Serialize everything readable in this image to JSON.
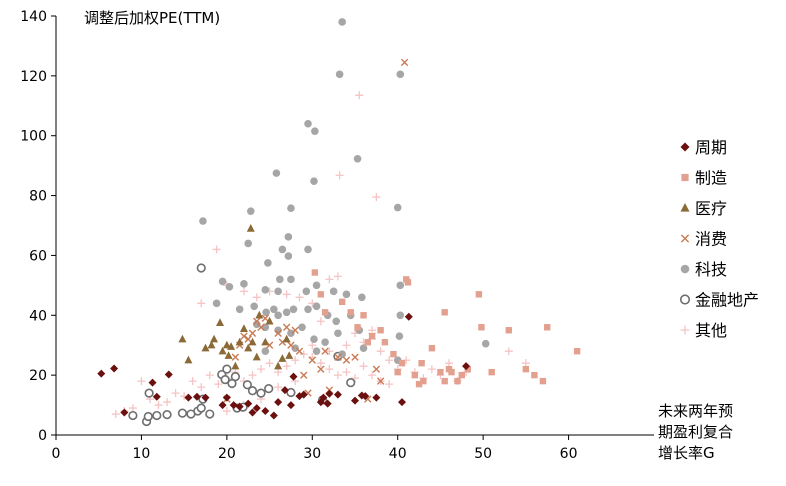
{
  "chart_data": {
    "type": "scatter",
    "title": "",
    "ylabel": "调整后加权PE(TTM)",
    "xlabel_lines": [
      "未来两年预",
      "期盈利复合",
      "增长率G"
    ],
    "xlim": [
      0,
      70
    ],
    "ylim": [
      0,
      140
    ],
    "x_ticks": [
      0,
      10,
      20,
      30,
      40,
      50,
      60
    ],
    "y_ticks": [
      0,
      20,
      40,
      60,
      80,
      100,
      120,
      140
    ],
    "grid": false,
    "legend_position": "right",
    "series": [
      {
        "name": "周期",
        "marker": "diamond",
        "color": "#6b0f0f",
        "points": [
          [
            5.3,
            20.5
          ],
          [
            6.8,
            22.2
          ],
          [
            8,
            7.5
          ],
          [
            11.3,
            17.5
          ],
          [
            11.8,
            12.8
          ],
          [
            13.2,
            20.2
          ],
          [
            15.5,
            12.5
          ],
          [
            16.5,
            12.8
          ],
          [
            17.5,
            12.5
          ],
          [
            19.5,
            10
          ],
          [
            20,
            12.5
          ],
          [
            20.8,
            10
          ],
          [
            21.5,
            9.5
          ],
          [
            22.5,
            10.5
          ],
          [
            23,
            7.5
          ],
          [
            23.5,
            9
          ],
          [
            24.5,
            8
          ],
          [
            25.5,
            6.5
          ],
          [
            26,
            11
          ],
          [
            26.8,
            15
          ],
          [
            27.5,
            10
          ],
          [
            27.8,
            19.5
          ],
          [
            28.5,
            13
          ],
          [
            29,
            13.5
          ],
          [
            31,
            11
          ],
          [
            31.3,
            12.5
          ],
          [
            31.8,
            10.5
          ],
          [
            32,
            13.8
          ],
          [
            33,
            13.5
          ],
          [
            35,
            11.5
          ],
          [
            35.8,
            13.2
          ],
          [
            36.2,
            13
          ],
          [
            37.5,
            12.5
          ],
          [
            40.5,
            11
          ],
          [
            41.3,
            39.5
          ],
          [
            48,
            23
          ]
        ]
      },
      {
        "name": "制造",
        "marker": "square",
        "color": "#e3a08f",
        "points": [
          [
            30.3,
            54.3
          ],
          [
            31,
            47
          ],
          [
            31.5,
            41
          ],
          [
            33.5,
            44.5
          ],
          [
            34.5,
            41
          ],
          [
            35.3,
            36
          ],
          [
            36,
            40
          ],
          [
            36.5,
            31
          ],
          [
            37,
            33
          ],
          [
            38,
            35
          ],
          [
            38.5,
            31
          ],
          [
            39.5,
            27
          ],
          [
            40,
            21
          ],
          [
            40.5,
            24
          ],
          [
            41,
            52
          ],
          [
            41.2,
            51
          ],
          [
            42,
            20
          ],
          [
            42.5,
            17
          ],
          [
            42.8,
            24
          ],
          [
            43,
            18
          ],
          [
            45.5,
            41
          ],
          [
            44,
            29
          ],
          [
            45,
            21
          ],
          [
            45.5,
            18
          ],
          [
            46,
            22
          ],
          [
            46.3,
            21
          ],
          [
            47,
            18
          ],
          [
            47.5,
            20
          ],
          [
            48.2,
            22
          ],
          [
            49.5,
            47
          ],
          [
            49.8,
            36
          ],
          [
            51,
            21
          ],
          [
            53,
            35
          ],
          [
            55,
            22
          ],
          [
            56,
            20
          ],
          [
            57,
            18
          ],
          [
            57.5,
            36
          ],
          [
            61,
            28
          ]
        ]
      },
      {
        "name": "医疗",
        "marker": "triangle",
        "color": "#8b6a37",
        "points": [
          [
            14.8,
            32
          ],
          [
            15.5,
            25
          ],
          [
            17.5,
            29
          ],
          [
            18.2,
            30
          ],
          [
            18.5,
            32
          ],
          [
            19.2,
            37.5
          ],
          [
            19.5,
            28
          ],
          [
            20,
            30
          ],
          [
            20.2,
            26.5
          ],
          [
            20.5,
            29.5
          ],
          [
            21,
            23
          ],
          [
            21.5,
            31
          ],
          [
            22,
            35.5
          ],
          [
            22.5,
            29
          ],
          [
            22.8,
            69
          ],
          [
            23,
            31
          ],
          [
            23.5,
            26
          ],
          [
            23.8,
            40
          ],
          [
            24.5,
            31
          ],
          [
            25,
            38
          ],
          [
            26,
            23
          ],
          [
            26.5,
            25.5
          ],
          [
            27,
            32
          ],
          [
            27.3,
            26.5
          ]
        ]
      },
      {
        "name": "消费",
        "marker": "x",
        "color": "#c97b55",
        "points": [
          [
            40.8,
            124.5
          ],
          [
            20,
            12
          ],
          [
            21,
            26
          ],
          [
            21.5,
            30
          ],
          [
            22,
            33
          ],
          [
            22.5,
            32
          ],
          [
            23,
            34
          ],
          [
            23.5,
            38
          ],
          [
            24,
            36
          ],
          [
            24.5,
            39
          ],
          [
            25,
            30
          ],
          [
            26,
            34
          ],
          [
            26.5,
            31
          ],
          [
            27,
            36
          ],
          [
            27.5,
            30
          ],
          [
            28,
            35
          ],
          [
            28.5,
            28
          ],
          [
            29,
            20
          ],
          [
            29.5,
            14
          ],
          [
            30,
            25
          ],
          [
            31,
            22
          ],
          [
            31.5,
            28
          ],
          [
            32,
            15
          ],
          [
            33,
            26
          ],
          [
            34,
            25
          ],
          [
            35,
            26
          ],
          [
            36.5,
            12
          ],
          [
            37,
            33
          ],
          [
            37.5,
            22
          ],
          [
            38,
            18
          ]
        ]
      },
      {
        "name": "科技",
        "marker": "circle",
        "color": "#a6a6a6",
        "points": [
          [
            33.5,
            138
          ],
          [
            33.2,
            120.5
          ],
          [
            40.3,
            120.5
          ],
          [
            29.5,
            104
          ],
          [
            30.3,
            101.5
          ],
          [
            35.3,
            92.3
          ],
          [
            25.8,
            87.5
          ],
          [
            30.2,
            84.8
          ],
          [
            40,
            76
          ],
          [
            22.8,
            74.8
          ],
          [
            27.5,
            75.8
          ],
          [
            17.2,
            71.5
          ],
          [
            22.5,
            64
          ],
          [
            27.2,
            66.2
          ],
          [
            26.5,
            62
          ],
          [
            27.2,
            59.8
          ],
          [
            29.5,
            62
          ],
          [
            24.8,
            57.5
          ],
          [
            26.2,
            52
          ],
          [
            30.5,
            50
          ],
          [
            19.5,
            51.3
          ],
          [
            20.3,
            49.5
          ],
          [
            22,
            50.5
          ],
          [
            24.5,
            48.5
          ],
          [
            26,
            48
          ],
          [
            27.5,
            52
          ],
          [
            29.3,
            48
          ],
          [
            32.5,
            48
          ],
          [
            34,
            47
          ],
          [
            35.8,
            46
          ],
          [
            40.3,
            50
          ],
          [
            18.8,
            44
          ],
          [
            21.5,
            42
          ],
          [
            23.2,
            43
          ],
          [
            24.6,
            41
          ],
          [
            25.5,
            42
          ],
          [
            26,
            40
          ],
          [
            27,
            41
          ],
          [
            27.8,
            42
          ],
          [
            29.5,
            42
          ],
          [
            30.5,
            43
          ],
          [
            31.8,
            40
          ],
          [
            32.8,
            38
          ],
          [
            34.5,
            40
          ],
          [
            40.3,
            40
          ],
          [
            23.5,
            37
          ],
          [
            24.5,
            36
          ],
          [
            26,
            35
          ],
          [
            27.5,
            34
          ],
          [
            28.8,
            36
          ],
          [
            30.2,
            32
          ],
          [
            31.5,
            31
          ],
          [
            33,
            34
          ],
          [
            35.5,
            35
          ],
          [
            40.2,
            33
          ],
          [
            50.3,
            30.5
          ],
          [
            24.5,
            28
          ],
          [
            28,
            29
          ],
          [
            30.5,
            28
          ],
          [
            33.5,
            27
          ],
          [
            36,
            29
          ],
          [
            40,
            25
          ]
        ]
      },
      {
        "name": "金融地产",
        "marker": "circle-open",
        "color": "#6e6e6e",
        "points": [
          [
            17,
            55.8
          ],
          [
            9,
            6.5
          ],
          [
            10.6,
            4.5
          ],
          [
            10.8,
            6.2
          ],
          [
            11.8,
            6.5
          ],
          [
            13,
            6.8
          ],
          [
            14.8,
            7.3
          ],
          [
            15.8,
            7
          ],
          [
            16.6,
            8
          ],
          [
            17,
            9
          ],
          [
            18,
            7
          ],
          [
            19.4,
            20.2
          ],
          [
            19.8,
            18.5
          ],
          [
            20,
            22
          ],
          [
            20.6,
            17.2
          ],
          [
            21,
            19.5
          ],
          [
            21.2,
            9
          ],
          [
            21.9,
            9.3
          ],
          [
            22.4,
            16.8
          ],
          [
            23,
            14.8
          ],
          [
            24,
            14
          ],
          [
            24.9,
            15.5
          ],
          [
            27.5,
            14.2
          ],
          [
            31.2,
            11.7
          ],
          [
            33,
            26.3
          ],
          [
            34.5,
            17.5
          ],
          [
            10.9,
            14
          ],
          [
            17.2,
            12
          ]
        ]
      },
      {
        "name": "其他",
        "marker": "plus",
        "color": "#f5c4c4",
        "points": [
          [
            35.5,
            113.5
          ],
          [
            37.5,
            79.5
          ],
          [
            33.2,
            86.8
          ],
          [
            18.8,
            62
          ],
          [
            17,
            44
          ],
          [
            20,
            50
          ],
          [
            22,
            48
          ],
          [
            23.5,
            46
          ],
          [
            25,
            48
          ],
          [
            27,
            47
          ],
          [
            28.5,
            46
          ],
          [
            30,
            44
          ],
          [
            31,
            38
          ],
          [
            32,
            52
          ],
          [
            33,
            53
          ],
          [
            34,
            30
          ],
          [
            35,
            34
          ],
          [
            36,
            31
          ],
          [
            37,
            35
          ],
          [
            38,
            28
          ],
          [
            39,
            25
          ],
          [
            40,
            22
          ],
          [
            41,
            25
          ],
          [
            42,
            21
          ],
          [
            43,
            19
          ],
          [
            44,
            22
          ],
          [
            45,
            20
          ],
          [
            46,
            24
          ],
          [
            47,
            18
          ],
          [
            48,
            21
          ],
          [
            53,
            28
          ],
          [
            55,
            24
          ],
          [
            7,
            7
          ],
          [
            8,
            8
          ],
          [
            9,
            9
          ],
          [
            10,
            18
          ],
          [
            11,
            12
          ],
          [
            12,
            10
          ],
          [
            13,
            11
          ],
          [
            14,
            14
          ],
          [
            15,
            13
          ],
          [
            16,
            18
          ],
          [
            17,
            16
          ],
          [
            18,
            20
          ],
          [
            19,
            17
          ],
          [
            20,
            19
          ],
          [
            21,
            21
          ],
          [
            22,
            18
          ],
          [
            23,
            20
          ],
          [
            24,
            22
          ],
          [
            25,
            24
          ],
          [
            26,
            21
          ],
          [
            27,
            23
          ],
          [
            28,
            25
          ],
          [
            29,
            27
          ],
          [
            30,
            26
          ],
          [
            31,
            24
          ],
          [
            32,
            22
          ],
          [
            33,
            20
          ],
          [
            34,
            21
          ],
          [
            35,
            19
          ],
          [
            36,
            23
          ],
          [
            37,
            20
          ],
          [
            38,
            18
          ],
          [
            39,
            17
          ],
          [
            30,
            30
          ],
          [
            32,
            28
          ],
          [
            28,
            18
          ],
          [
            26,
            16
          ],
          [
            24,
            12
          ],
          [
            22,
            10
          ],
          [
            20,
            8
          ]
        ]
      }
    ]
  }
}
